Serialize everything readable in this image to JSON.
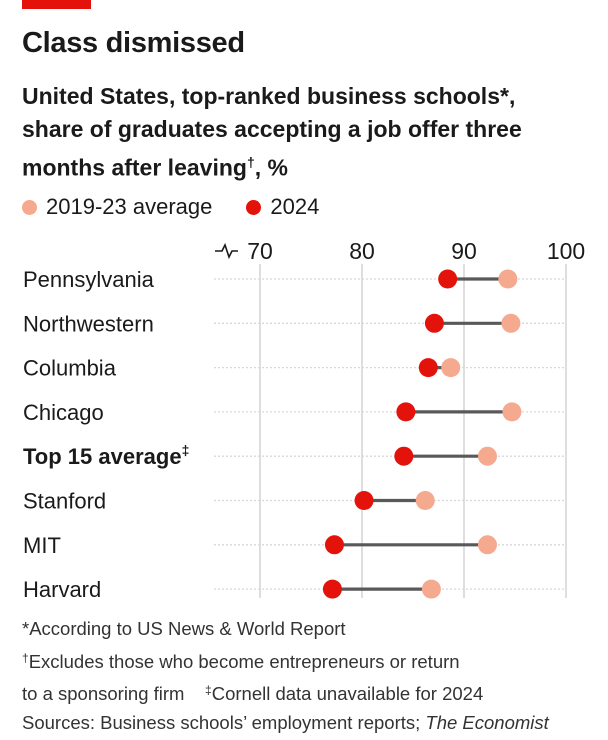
{
  "header": {
    "title": "Class dismissed",
    "subtitle_line1": "United States, top-ranked business schools*,",
    "subtitle_line2": "share of graduates accepting a job offer three",
    "subtitle_line3a": "months after leaving",
    "subtitle_dagger": "†",
    "subtitle_line3b": ", %"
  },
  "legend": {
    "series1": "2019-23 average",
    "series2": "2024"
  },
  "colors": {
    "series1": "#f5a98e",
    "series2": "#e3120b",
    "connector": "#595959",
    "grid": "#bdbdbd",
    "rowline": "#d8d8d8"
  },
  "chart_data": {
    "type": "dot-plot",
    "x_ticks": [
      "70",
      "80",
      "90",
      "100"
    ],
    "xlim": [
      70,
      100
    ],
    "axis_break": true,
    "categories": [
      "Pennsylvania",
      "Northwestern",
      "Columbia",
      "Chicago",
      "Top 15 average",
      "Stanford",
      "MIT",
      "Harvard"
    ],
    "category_superscripts": [
      "",
      "",
      "",
      "",
      "‡",
      "",
      "",
      ""
    ],
    "category_bold": [
      false,
      false,
      false,
      false,
      true,
      false,
      false,
      false
    ],
    "series": [
      {
        "name": "2019-23 average",
        "values": [
          94.3,
          94.6,
          88.7,
          94.7,
          92.3,
          86.2,
          92.3,
          86.8
        ]
      },
      {
        "name": "2024",
        "values": [
          88.4,
          87.1,
          86.5,
          84.3,
          84.1,
          80.2,
          77.3,
          77.1
        ]
      }
    ]
  },
  "footnotes": {
    "line1": "*According to US News & World Report",
    "line2_mark": "†",
    "line2": "Excludes those who become entrepreneurs or return",
    "line3a": "to a sponsoring firm",
    "line3_mark": "‡",
    "line3b": "Cornell data unavailable for 2024",
    "sources_prefix": "Sources: Business schools’ employment reports; ",
    "sources_italic": "The Economist"
  }
}
